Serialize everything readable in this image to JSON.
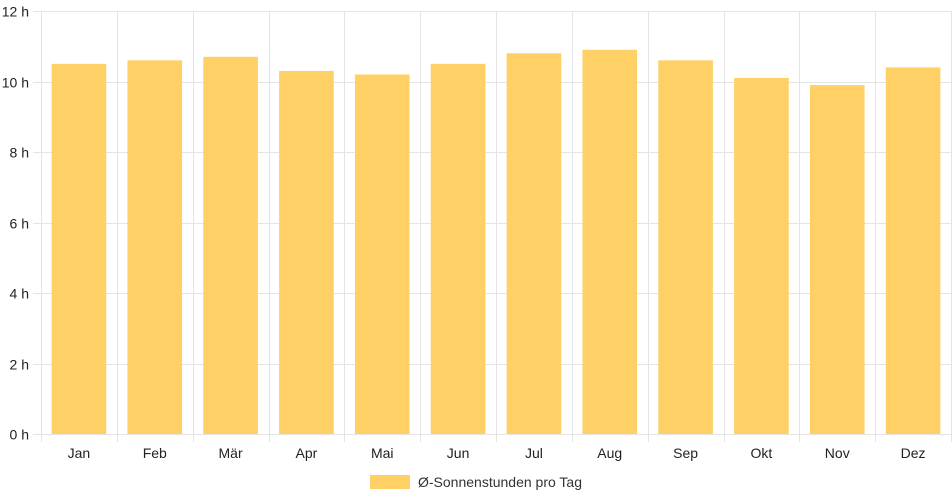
{
  "chart_data": {
    "type": "bar",
    "categories": [
      "Jan",
      "Feb",
      "Mär",
      "Apr",
      "Mai",
      "Jun",
      "Jul",
      "Aug",
      "Sep",
      "Okt",
      "Nov",
      "Dez"
    ],
    "series": [
      {
        "name": "Ø-Sonnenstunden pro Tag",
        "values": [
          10.5,
          10.6,
          10.7,
          10.3,
          10.2,
          10.5,
          10.8,
          10.9,
          10.6,
          10.1,
          9.9,
          10.4
        ],
        "color": "#FED066"
      }
    ],
    "ylim": [
      0,
      12
    ],
    "yticks": [
      0,
      2,
      4,
      6,
      8,
      10,
      12
    ],
    "ytick_suffix": " h",
    "grid": true,
    "legend": "bottom-center",
    "title": "",
    "xlabel": "",
    "ylabel": ""
  }
}
